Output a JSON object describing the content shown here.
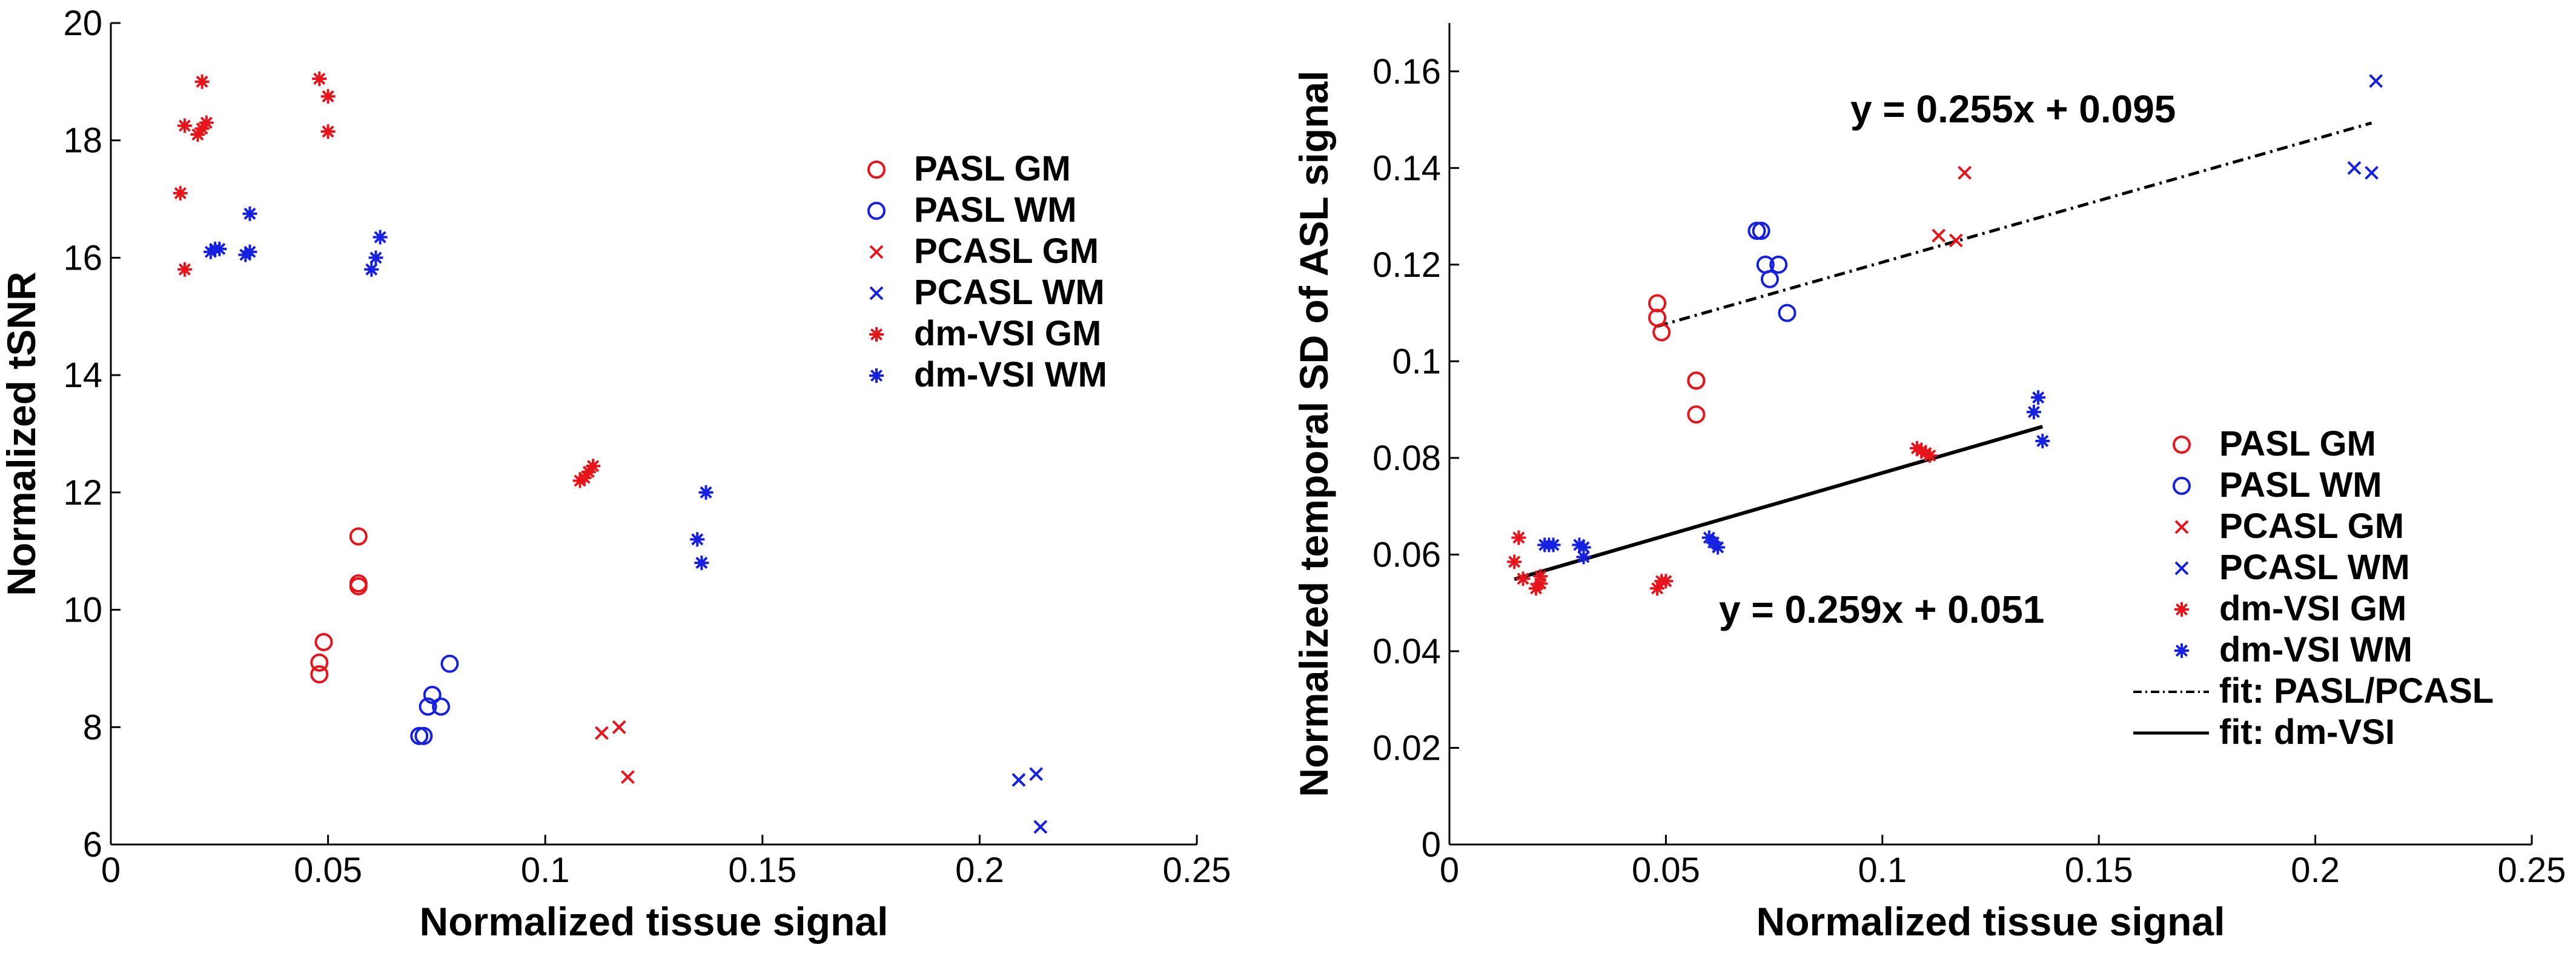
{
  "colors": {
    "red": "#e8141c",
    "blue": "#1620e0",
    "black": "#000000"
  },
  "chart_data": [
    {
      "type": "scatter",
      "xlabel": "Normalized tissue signal",
      "ylabel": "Normalized tSNR",
      "xlim": [
        0,
        0.25
      ],
      "ylim": [
        6,
        20
      ],
      "xticks": [
        "0",
        "0.05",
        "0.1",
        "0.15",
        "0.2",
        "0.25"
      ],
      "yticks": [
        "6",
        "8",
        "10",
        "12",
        "14",
        "16",
        "18",
        "20"
      ],
      "legend_position": "upper-right",
      "series": [
        {
          "name": "PASL GM",
          "marker": "circle",
          "color": "red",
          "points": [
            [
              0.048,
              9.1
            ],
            [
              0.048,
              8.9
            ],
            [
              0.049,
              9.45
            ],
            [
              0.057,
              10.4
            ],
            [
              0.057,
              10.45
            ],
            [
              0.057,
              11.25
            ]
          ]
        },
        {
          "name": "PASL WM",
          "marker": "circle",
          "color": "blue",
          "points": [
            [
              0.071,
              7.85
            ],
            [
              0.072,
              7.85
            ],
            [
              0.073,
              8.35
            ],
            [
              0.074,
              8.55
            ],
            [
              0.076,
              8.35
            ],
            [
              0.078,
              9.08
            ]
          ]
        },
        {
          "name": "PCASL GM",
          "marker": "x",
          "color": "red",
          "points": [
            [
              0.113,
              7.9
            ],
            [
              0.117,
              8.0
            ],
            [
              0.119,
              7.15
            ]
          ]
        },
        {
          "name": "PCASL WM",
          "marker": "x",
          "color": "blue",
          "points": [
            [
              0.209,
              7.1
            ],
            [
              0.213,
              7.2
            ],
            [
              0.214,
              6.3
            ]
          ]
        },
        {
          "name": "dm-VSI GM",
          "marker": "star",
          "color": "red",
          "points": [
            [
              0.016,
              17.1
            ],
            [
              0.017,
              18.25
            ],
            [
              0.017,
              15.8
            ],
            [
              0.02,
              18.1
            ],
            [
              0.021,
              18.2
            ],
            [
              0.021,
              19.0
            ],
            [
              0.022,
              18.3
            ],
            [
              0.048,
              19.05
            ],
            [
              0.05,
              18.15
            ],
            [
              0.05,
              18.75
            ],
            [
              0.108,
              12.2
            ],
            [
              0.109,
              12.25
            ],
            [
              0.11,
              12.35
            ],
            [
              0.111,
              12.45
            ]
          ]
        },
        {
          "name": "dm-VSI WM",
          "marker": "star",
          "color": "blue",
          "points": [
            [
              0.023,
              16.1
            ],
            [
              0.024,
              16.15
            ],
            [
              0.025,
              16.15
            ],
            [
              0.031,
              16.05
            ],
            [
              0.032,
              16.1
            ],
            [
              0.032,
              16.75
            ],
            [
              0.06,
              15.8
            ],
            [
              0.061,
              16.0
            ],
            [
              0.062,
              16.35
            ],
            [
              0.135,
              11.2
            ],
            [
              0.136,
              10.8
            ],
            [
              0.137,
              12.0
            ]
          ]
        }
      ]
    },
    {
      "type": "scatter",
      "xlabel": "Normalized tissue signal",
      "ylabel": "Normalized temporal SD of ASL signal",
      "xlim": [
        0,
        0.25
      ],
      "ylim": [
        0,
        0.17
      ],
      "xticks": [
        "0",
        "0.05",
        "0.1",
        "0.15",
        "0.2",
        "0.25"
      ],
      "yticks": [
        "0",
        "0.02",
        "0.04",
        "0.06",
        "0.08",
        "0.1",
        "0.12",
        "0.14",
        "0.16"
      ],
      "legend_position": "lower-right",
      "series": [
        {
          "name": "PASL GM",
          "marker": "circle",
          "color": "red",
          "points": [
            [
              0.048,
              0.112
            ],
            [
              0.048,
              0.109
            ],
            [
              0.049,
              0.106
            ],
            [
              0.057,
              0.096
            ],
            [
              0.057,
              0.096
            ],
            [
              0.057,
              0.089
            ]
          ]
        },
        {
          "name": "PASL WM",
          "marker": "circle",
          "color": "blue",
          "points": [
            [
              0.071,
              0.127
            ],
            [
              0.072,
              0.127
            ],
            [
              0.073,
              0.12
            ],
            [
              0.074,
              0.117
            ],
            [
              0.076,
              0.12
            ],
            [
              0.078,
              0.11
            ]
          ]
        },
        {
          "name": "PCASL GM",
          "marker": "x",
          "color": "red",
          "points": [
            [
              0.113,
              0.126
            ],
            [
              0.117,
              0.125
            ],
            [
              0.119,
              0.139
            ]
          ]
        },
        {
          "name": "PCASL WM",
          "marker": "x",
          "color": "blue",
          "points": [
            [
              0.209,
              0.14
            ],
            [
              0.213,
              0.139
            ],
            [
              0.214,
              0.158
            ]
          ]
        },
        {
          "name": "dm-VSI GM",
          "marker": "star",
          "color": "red",
          "points": [
            [
              0.015,
              0.0585
            ],
            [
              0.016,
              0.0635
            ],
            [
              0.017,
              0.055
            ],
            [
              0.02,
              0.053
            ],
            [
              0.021,
              0.0555
            ],
            [
              0.021,
              0.054
            ],
            [
              0.048,
              0.053
            ],
            [
              0.049,
              0.0545
            ],
            [
              0.05,
              0.0545
            ],
            [
              0.108,
              0.082
            ],
            [
              0.109,
              0.0815
            ],
            [
              0.11,
              0.081
            ],
            [
              0.111,
              0.0805
            ]
          ]
        },
        {
          "name": "dm-VSI WM",
          "marker": "star",
          "color": "blue",
          "points": [
            [
              0.022,
              0.062
            ],
            [
              0.023,
              0.062
            ],
            [
              0.024,
              0.062
            ],
            [
              0.03,
              0.062
            ],
            [
              0.031,
              0.0615
            ],
            [
              0.031,
              0.0595
            ],
            [
              0.06,
              0.0635
            ],
            [
              0.061,
              0.0625
            ],
            [
              0.062,
              0.0615
            ],
            [
              0.135,
              0.0895
            ],
            [
              0.136,
              0.0925
            ],
            [
              0.137,
              0.0835
            ]
          ]
        }
      ],
      "fits": [
        {
          "name": "fit: PASL/PCASL",
          "style": "dashdot",
          "slope": 0.255,
          "intercept": 0.095,
          "x_range": [
            0.048,
            0.213
          ],
          "equation": "y = 0.255x + 0.095"
        },
        {
          "name": "fit: dm-VSI",
          "style": "solid",
          "slope": 0.259,
          "intercept": 0.051,
          "x_range": [
            0.015,
            0.137
          ],
          "equation": "y = 0.259x + 0.051"
        }
      ]
    }
  ]
}
